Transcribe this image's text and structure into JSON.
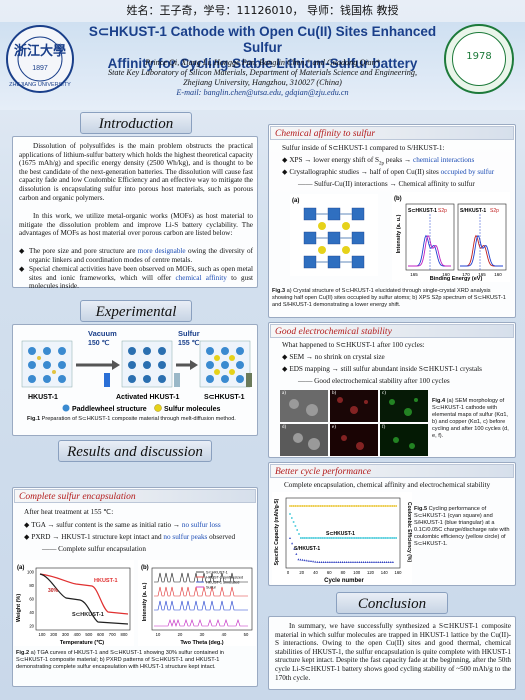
{
  "topline": "姓名：王子奇，学号：11126010，   导师：钱国栋  教授",
  "header": {
    "title_line1": "S⊂HKUST-1 Cathode with Open Cu(II) Sites Enhanced Sulfur",
    "title_line2": "Affinity for Cycling Stable Lithium-Sulfur battery",
    "authors": "Prince Qi, Xiang Li, Hongge Pan, Banglin Chen,* and Guodong Qian*",
    "affil1": "State Key Laboratory of Silicon Materials, Department of Materials Science and Engineering,",
    "affil2": "Zhejiang University, Hangzhou, 310027 (China)",
    "email": "E-mail: banglin.chen@utsa.edu, gdqian@zju.edu.cn",
    "left_logo_text": "ZHEJIANG UNIVERSITY",
    "left_logo_year": "1897",
    "right_logo_text": "1978"
  },
  "introduction": {
    "heading": "Introduction",
    "p1": "Dissolution of polysulfides is the main problem obstructs the practical applications of lithium-sulfur battery which holds the highest theoretical capacity (1675 mAh/g) and specific energy density (2500 Wh/kg), and is thought to be the best candidate of the next-generation batteries. The dissolution will cause fast capacity fade and low Coulombic Efficiency and an effective way to mitigate the dissolution is encapsulating sulfur into porous host materials, such as porous carbon and organic polymers.",
    "p2": "In this work, we utilize metal-organic works (MOFs) as host material to mitigate the dissolution problem and improve Li-S battery cyclability. The advantages of MOFs as host material over porous carbon are listed below:",
    "b1a": "The pore size and pore structure are ",
    "b1b": "more designable",
    "b1c": " owing the diversity of organic linkers and coordination modes of centre metals.",
    "b2a": "Special chemical activities have been observed on MOFs, such as open metal sites and ionic frameworks, which will offer ",
    "b2b": "chemical affinity",
    "b2c": " to gust molecules inside."
  },
  "experimental": {
    "heading": "Experimental",
    "vacuum": "Vacuum",
    "vacuum_temp": "150 ℃",
    "sulfur": "Sulfur",
    "sulfur_temp": "155 ℃",
    "label_hkust": "HKUST-1",
    "label_activated": "Activated HKUST-1",
    "label_s_hkust": "S⊂HKUST-1",
    "legend_paddle": "Paddlewheel structure",
    "legend_sulfur": "Sulfur molecules",
    "caption_bold": "Fig.1",
    "caption": " Preparation of S⊂HKUST-1 composite material through melt-diffusion method."
  },
  "results": {
    "heading": "Results and discussion",
    "sub1": "Complete sulfur encapsulation",
    "intro_line": "After heat treatment at 155 ℃:",
    "b1a": "TGA → sulfur content is the same as initial ratio → ",
    "b1b": "no sulfur loss",
    "b2a": "PXRD → HKUST-1 structure kept intact and ",
    "b2b": "no sulfur peaks",
    "b2c": " observed",
    "conclusion_line": "—— Complete sulfur encapsulation",
    "fig2_caption_bold": "Fig.2",
    "fig2_caption": " a) TGA curves of HKUST-1 and S⊂HKUST-1 showing 30% sulfur contained in S⊂HKUST-1 composite material; b) PXRD patterns of S⊂HKUST-1 and HKUST-1 demonstrating complete sulfur encapsulation with HKUST-1 structure kept intact."
  },
  "tga": {
    "panel": "(a)",
    "ylabel": "Weight (%)",
    "xlabel": "Temperature (℃)",
    "xticks": [
      "100",
      "200",
      "300",
      "400",
      "500",
      "600",
      "700",
      "800"
    ],
    "yticks": [
      "20",
      "40",
      "60",
      "80",
      "100"
    ],
    "series1": "HKUST-1",
    "series2": "S⊂HKUST-1",
    "annot": "30%",
    "color1": "#e03030",
    "color2": "#202020"
  },
  "pxrd": {
    "panel": "(b)",
    "ylabel": "Intensity (a. u.)",
    "xlabel": "Two Theta (deg.)",
    "xticks": [
      "10",
      "20",
      "30",
      "40",
      "50"
    ],
    "legend": [
      "S⊂HKUST-1",
      "HKUST-1 synthesized",
      "HKUST-1 simulated",
      "Sulfur"
    ],
    "colors": [
      "#202020",
      "#e03030",
      "#2040d0",
      "#c020c0"
    ]
  },
  "affinity": {
    "sub": "Chemical affinity to sulfur",
    "intro": "Sulfur inside of S⊂HKUST-1 compared to S/HKUST-1:",
    "b1a": "XPS → lower energy shift of S",
    "b1sub": "2p",
    "b1b": " peaks → ",
    "b1c": "chemical interactions",
    "b2a": "Crystallographic studies → half of open Cu(II) sites ",
    "b2b": "occupied by sulfur",
    "line3": "—— Sulfur-Cu(II) interactions → Chemical affinity to sulfur",
    "panel_a": "(a)",
    "panel_b": "(b)",
    "xps_left": "S⊂HKUST-1",
    "xps_right": "S/HKUST-1",
    "peak": "S2p",
    "xps_ylabel": "Intensity (a. u.)",
    "xps_xlabel": "Binding Energy (eV)",
    "xps_ticks": [
      "165",
      "160",
      "170",
      "165",
      "160"
    ],
    "caption_bold": "Fig.3",
    "caption": " a) Crystal structure of S⊂HKUST-1 elucidated through single-crystal XRD analysis showing half open Cu(II) sites occupied by sulfur atoms; b) XPS S2p spectrum of S⊂HKUST-1 and S/HKUST-1 demonstrating a lower energy shift."
  },
  "stability": {
    "sub": "Good electrochemical stability",
    "intro": "What happened to S⊂HKUST-1 after 100 cycles:",
    "b1": "SEM → no shrink on crystal size",
    "b2": "EDS mapping → still sulfur abundant inside S⊂HKUST-1 crystals",
    "line3": "—— Good electrochemical stability after 100 cycles",
    "panels": [
      "a)",
      "b)",
      "c)",
      "d)",
      "e)",
      "f)"
    ],
    "caption_bold": "Fig.4",
    "caption": " (a) SEM morphology of S⊂HKUST-1 cathode with elemental maps of sulfur (Kα1, b) and copper (Kα1, c) before cycling and after 100 cycles (d, e, f)."
  },
  "cycle": {
    "sub": "Better cycle performance",
    "intro": "Complete encapsulation, chemical affinity and electrochemical stability",
    "ylabel": "Specific Capacity (mAh/g-S)",
    "y2label": "Coulombic Efficiency (%)",
    "xlabel": "Cycle number",
    "xticks": [
      "0",
      "20",
      "40",
      "60",
      "80",
      "100",
      "120",
      "140",
      "160"
    ],
    "series1": "S⊂HKUST-1",
    "series2": "S/HKUST-1",
    "caption_bold": "Fig.5",
    "caption": " Cycling performance of S⊂HKUST-1 (cyan square) and S/HKUST-1 (blue triangular) at a 0.1C/0.05C charge/discharge rate with coulombic efficiency (yellow circle) of S⊂HKUST-1."
  },
  "conclusion": {
    "heading": "Conclusion",
    "text": "In summary, we have successfully synthesized a S⊂HKUST-1 composite material in which sulfur molecules are trapped in HKUST-1 lattice by the Cu(II)-S interactions. Owing to the open Cu(II) sites and good thermal, chemical stabilities of HKUST-1, the sulfur encapsulation is quite complete with HKUST-1 structure kept intact. Despite the fast capacity fade at the beginning, after the 50th cycle Li-S⊂HKUST-1 battery shows good cycling stability of ~500 mAh/g to the 170th cycle."
  }
}
